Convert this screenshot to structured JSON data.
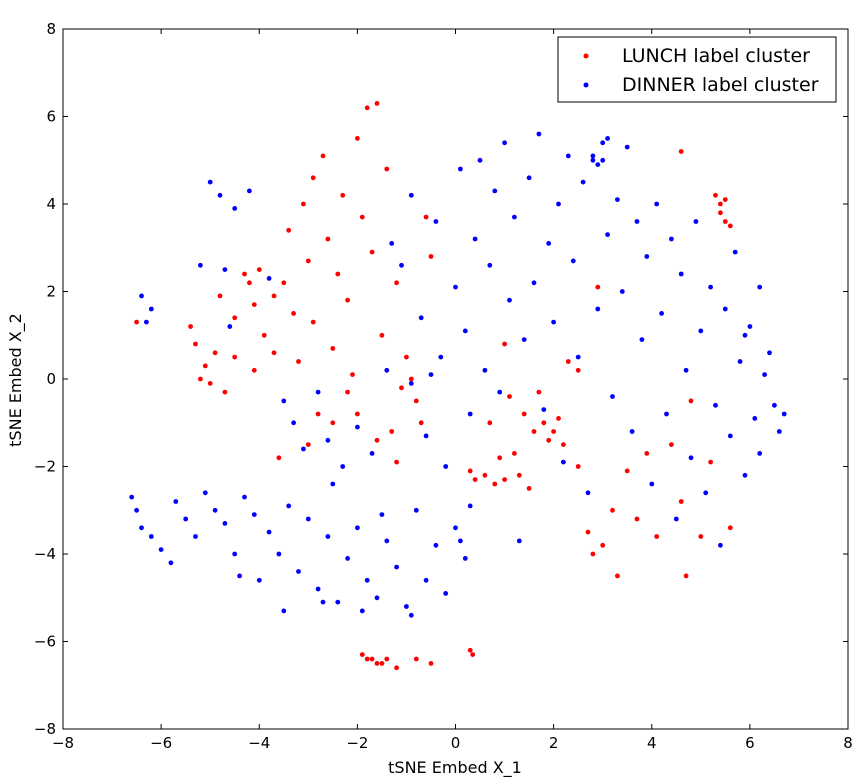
{
  "chart_data": {
    "type": "scatter",
    "xlabel": "tSNE Embed X_1",
    "ylabel": "tSNE Embed X_2",
    "xlim": [
      -8,
      8
    ],
    "ylim": [
      -8,
      8
    ],
    "xticks": [
      "−8",
      "−6",
      "−4",
      "−2",
      "0",
      "2",
      "4",
      "6",
      "8"
    ],
    "yticks": [
      "−8",
      "−6",
      "−4",
      "−2",
      "0",
      "2",
      "4",
      "6",
      "8"
    ],
    "grid": false,
    "legend_position": "top-right",
    "series": [
      {
        "name": "LUNCH label cluster",
        "color": "#ff0000",
        "points": [
          [
            -6.5,
            1.3
          ],
          [
            -5.4,
            1.2
          ],
          [
            -5.3,
            0.8
          ],
          [
            -5.1,
            0.3
          ],
          [
            -5.0,
            -0.1
          ],
          [
            -4.9,
            0.6
          ],
          [
            -4.8,
            1.9
          ],
          [
            -4.7,
            -0.3
          ],
          [
            -4.5,
            1.4
          ],
          [
            -4.5,
            0.5
          ],
          [
            -4.3,
            2.4
          ],
          [
            -4.1,
            1.7
          ],
          [
            -4.1,
            0.2
          ],
          [
            -4.0,
            2.5
          ],
          [
            -3.9,
            1.0
          ],
          [
            -3.7,
            0.6
          ],
          [
            -3.7,
            1.9
          ],
          [
            -3.5,
            2.2
          ],
          [
            -3.4,
            3.4
          ],
          [
            -3.3,
            1.5
          ],
          [
            -3.2,
            0.4
          ],
          [
            -3.1,
            4.0
          ],
          [
            -3.0,
            2.7
          ],
          [
            -2.9,
            4.6
          ],
          [
            -2.9,
            1.3
          ],
          [
            -2.8,
            -0.8
          ],
          [
            -2.7,
            5.1
          ],
          [
            -2.6,
            3.2
          ],
          [
            -2.5,
            0.7
          ],
          [
            -2.4,
            2.4
          ],
          [
            -2.3,
            4.2
          ],
          [
            -2.2,
            1.8
          ],
          [
            -2.1,
            0.1
          ],
          [
            -2.0,
            5.5
          ],
          [
            -1.9,
            3.7
          ],
          [
            -1.8,
            6.2
          ],
          [
            -1.7,
            2.9
          ],
          [
            -1.6,
            6.3
          ],
          [
            -1.5,
            1.0
          ],
          [
            -1.4,
            4.8
          ],
          [
            -1.3,
            -1.2
          ],
          [
            -1.2,
            2.2
          ],
          [
            -1.0,
            0.5
          ],
          [
            -3.6,
            -1.8
          ],
          [
            -3.0,
            -1.5
          ],
          [
            -2.5,
            -1.0
          ],
          [
            -2.0,
            -0.8
          ],
          [
            -1.6,
            -1.4
          ],
          [
            -1.2,
            -1.9
          ],
          [
            -1.1,
            -0.2
          ],
          [
            -0.9,
            0.0
          ],
          [
            -0.8,
            -0.5
          ],
          [
            -0.7,
            -1.0
          ],
          [
            -0.6,
            3.7
          ],
          [
            -0.5,
            2.8
          ],
          [
            0.3,
            -2.1
          ],
          [
            0.4,
            -2.3
          ],
          [
            0.6,
            -2.2
          ],
          [
            0.7,
            -1.0
          ],
          [
            0.8,
            -2.4
          ],
          [
            0.9,
            -1.8
          ],
          [
            1.0,
            -2.3
          ],
          [
            1.1,
            -0.4
          ],
          [
            1.2,
            -1.7
          ],
          [
            1.3,
            -2.2
          ],
          [
            1.4,
            -0.8
          ],
          [
            1.5,
            -2.5
          ],
          [
            1.6,
            -1.2
          ],
          [
            1.7,
            -0.3
          ],
          [
            1.8,
            -1.0
          ],
          [
            1.9,
            -1.4
          ],
          [
            2.0,
            -1.2
          ],
          [
            2.1,
            -0.9
          ],
          [
            2.2,
            -1.5
          ],
          [
            2.3,
            0.4
          ],
          [
            2.5,
            -2.0
          ],
          [
            2.7,
            -3.5
          ],
          [
            2.8,
            -4.0
          ],
          [
            2.9,
            2.1
          ],
          [
            3.0,
            -3.8
          ],
          [
            3.2,
            -3.0
          ],
          [
            3.3,
            -4.5
          ],
          [
            3.5,
            -2.1
          ],
          [
            3.7,
            -3.2
          ],
          [
            3.9,
            -1.7
          ],
          [
            4.1,
            -3.6
          ],
          [
            4.4,
            -1.5
          ],
          [
            4.6,
            -2.8
          ],
          [
            4.7,
            -4.5
          ],
          [
            4.8,
            -0.5
          ],
          [
            5.0,
            -3.6
          ],
          [
            4.6,
            5.2
          ],
          [
            5.3,
            4.2
          ],
          [
            5.4,
            4.0
          ],
          [
            5.4,
            3.8
          ],
          [
            5.5,
            3.6
          ],
          [
            5.5,
            4.1
          ],
          [
            5.6,
            3.5
          ],
          [
            5.2,
            -1.9
          ],
          [
            5.6,
            -3.4
          ],
          [
            -1.9,
            -6.3
          ],
          [
            -1.8,
            -6.4
          ],
          [
            -1.7,
            -6.4
          ],
          [
            -1.6,
            -6.5
          ],
          [
            -1.5,
            -6.5
          ],
          [
            -1.4,
            -6.4
          ],
          [
            -1.2,
            -6.6
          ],
          [
            -0.8,
            -6.4
          ],
          [
            -0.5,
            -6.5
          ],
          [
            0.3,
            -6.2
          ],
          [
            0.35,
            -6.3
          ],
          [
            -4.2,
            2.2
          ],
          [
            -5.2,
            0.0
          ],
          [
            -2.2,
            -0.3
          ],
          [
            1.0,
            0.8
          ],
          [
            2.5,
            0.2
          ]
        ]
      },
      {
        "name": "DINNER label cluster",
        "color": "#0000ff",
        "points": [
          [
            -6.6,
            -2.7
          ],
          [
            -6.5,
            -3.0
          ],
          [
            -6.4,
            -3.4
          ],
          [
            -6.2,
            -3.6
          ],
          [
            -6.0,
            -3.9
          ],
          [
            -5.8,
            -4.2
          ],
          [
            -5.7,
            -2.8
          ],
          [
            -5.5,
            -3.2
          ],
          [
            -5.3,
            -3.6
          ],
          [
            -5.1,
            -2.6
          ],
          [
            -4.9,
            -3.0
          ],
          [
            -4.7,
            -3.3
          ],
          [
            -4.5,
            -4.0
          ],
          [
            -4.3,
            -2.7
          ],
          [
            -4.1,
            -3.1
          ],
          [
            -4.0,
            -4.6
          ],
          [
            -3.8,
            -3.5
          ],
          [
            -3.6,
            -4.0
          ],
          [
            -3.4,
            -2.9
          ],
          [
            -3.2,
            -4.4
          ],
          [
            -3.0,
            -3.2
          ],
          [
            -2.8,
            -4.8
          ],
          [
            -2.6,
            -3.6
          ],
          [
            -2.4,
            -5.1
          ],
          [
            -2.2,
            -4.1
          ],
          [
            -2.0,
            -3.4
          ],
          [
            -1.8,
            -4.6
          ],
          [
            -1.6,
            -5.0
          ],
          [
            -1.4,
            -3.7
          ],
          [
            -1.2,
            -4.3
          ],
          [
            -1.0,
            -5.2
          ],
          [
            -0.8,
            -3.0
          ],
          [
            -0.6,
            -4.6
          ],
          [
            -0.4,
            -3.8
          ],
          [
            -0.2,
            -4.9
          ],
          [
            0.0,
            -3.4
          ],
          [
            0.2,
            -4.1
          ],
          [
            0.3,
            -2.9
          ],
          [
            -6.4,
            1.9
          ],
          [
            -6.3,
            1.3
          ],
          [
            -6.2,
            1.6
          ],
          [
            -5.0,
            4.5
          ],
          [
            -4.8,
            4.2
          ],
          [
            -4.5,
            3.9
          ],
          [
            -4.2,
            4.3
          ],
          [
            -5.2,
            2.6
          ],
          [
            -4.7,
            2.5
          ],
          [
            -4.6,
            1.2
          ],
          [
            -3.8,
            2.3
          ],
          [
            -3.5,
            -0.5
          ],
          [
            -3.3,
            -1.0
          ],
          [
            -3.1,
            -1.6
          ],
          [
            -2.8,
            -0.3
          ],
          [
            -2.6,
            -1.4
          ],
          [
            -2.3,
            -2.0
          ],
          [
            -2.0,
            -1.1
          ],
          [
            -1.7,
            -1.7
          ],
          [
            -1.4,
            0.2
          ],
          [
            -1.3,
            3.1
          ],
          [
            -1.1,
            2.6
          ],
          [
            -0.9,
            4.2
          ],
          [
            -0.7,
            1.4
          ],
          [
            -0.6,
            -1.3
          ],
          [
            -0.4,
            3.6
          ],
          [
            -0.3,
            0.5
          ],
          [
            -0.2,
            -2.0
          ],
          [
            0.0,
            2.1
          ],
          [
            0.1,
            4.8
          ],
          [
            0.2,
            1.1
          ],
          [
            0.3,
            -0.8
          ],
          [
            0.4,
            3.2
          ],
          [
            0.5,
            5.0
          ],
          [
            0.6,
            0.2
          ],
          [
            0.7,
            2.6
          ],
          [
            0.8,
            4.3
          ],
          [
            0.9,
            -0.3
          ],
          [
            1.0,
            5.4
          ],
          [
            1.1,
            1.8
          ],
          [
            1.2,
            3.7
          ],
          [
            1.3,
            -3.7
          ],
          [
            1.4,
            0.9
          ],
          [
            1.5,
            4.6
          ],
          [
            1.6,
            2.2
          ],
          [
            1.7,
            5.6
          ],
          [
            1.8,
            -0.7
          ],
          [
            1.9,
            3.1
          ],
          [
            2.0,
            1.3
          ],
          [
            2.1,
            4.0
          ],
          [
            2.2,
            -1.9
          ],
          [
            2.3,
            5.1
          ],
          [
            2.4,
            2.7
          ],
          [
            2.5,
            0.5
          ],
          [
            2.6,
            4.5
          ],
          [
            2.7,
            -2.6
          ],
          [
            2.8,
            5.0
          ],
          [
            2.9,
            1.6
          ],
          [
            3.0,
            5.4
          ],
          [
            3.1,
            3.3
          ],
          [
            3.2,
            -0.4
          ],
          [
            3.3,
            4.1
          ],
          [
            3.4,
            2.0
          ],
          [
            3.5,
            5.3
          ],
          [
            3.6,
            -1.2
          ],
          [
            3.7,
            3.6
          ],
          [
            3.8,
            0.9
          ],
          [
            3.9,
            2.8
          ],
          [
            4.0,
            -2.4
          ],
          [
            4.1,
            4.0
          ],
          [
            4.2,
            1.5
          ],
          [
            4.3,
            -0.8
          ],
          [
            4.4,
            3.2
          ],
          [
            4.5,
            -3.2
          ],
          [
            4.6,
            2.4
          ],
          [
            4.7,
            0.2
          ],
          [
            4.8,
            -1.8
          ],
          [
            4.9,
            3.6
          ],
          [
            5.0,
            1.1
          ],
          [
            5.1,
            -2.6
          ],
          [
            5.2,
            2.1
          ],
          [
            5.3,
            -0.6
          ],
          [
            5.4,
            -3.8
          ],
          [
            5.5,
            1.6
          ],
          [
            5.6,
            -1.3
          ],
          [
            5.7,
            2.9
          ],
          [
            5.8,
            0.4
          ],
          [
            5.9,
            -2.2
          ],
          [
            6.0,
            1.2
          ],
          [
            6.1,
            -0.9
          ],
          [
            6.2,
            -1.7
          ],
          [
            6.3,
            0.1
          ],
          [
            6.5,
            -0.6
          ],
          [
            6.6,
            -1.2
          ],
          [
            6.7,
            -0.8
          ],
          [
            6.4,
            0.6
          ],
          [
            6.2,
            2.1
          ],
          [
            5.9,
            1.0
          ],
          [
            3.0,
            5.0
          ],
          [
            2.9,
            4.9
          ],
          [
            2.8,
            5.1
          ],
          [
            3.1,
            5.5
          ],
          [
            -0.5,
            0.1
          ],
          [
            -0.9,
            -0.1
          ],
          [
            -2.5,
            -2.4
          ],
          [
            -1.5,
            -3.1
          ],
          [
            -4.4,
            -4.5
          ],
          [
            -3.5,
            -5.3
          ],
          [
            -2.7,
            -5.1
          ],
          [
            -1.9,
            -5.3
          ],
          [
            -0.9,
            -5.4
          ],
          [
            0.1,
            -3.7
          ]
        ]
      }
    ]
  }
}
